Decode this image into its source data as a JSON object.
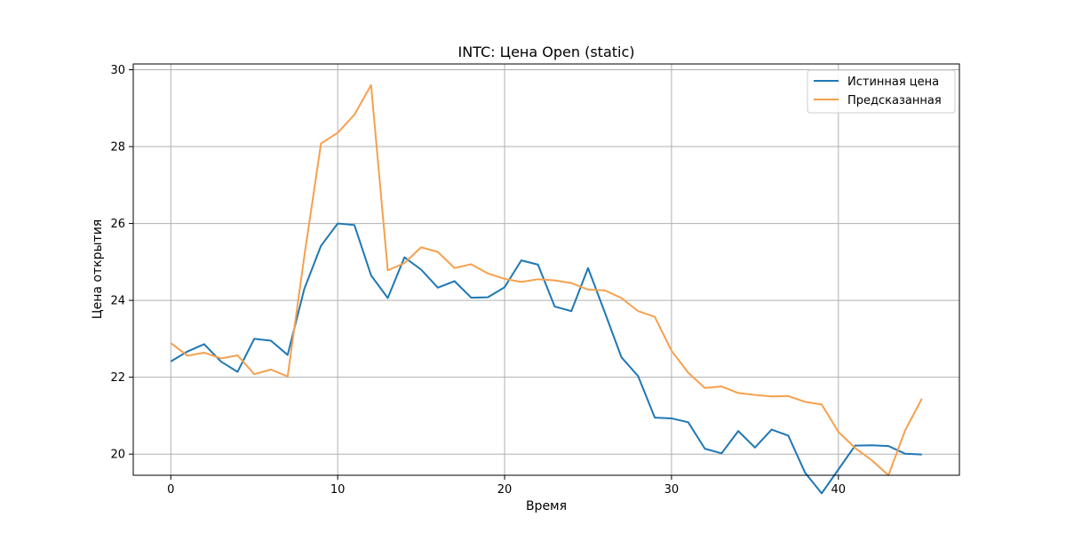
{
  "chart_data": {
    "type": "line",
    "title": "INTC: Цена Open (static)",
    "xlabel": "Время",
    "ylabel": "Цена открытия",
    "xlim": [
      -2.25,
      47.25
    ],
    "ylim": [
      19.45,
      30.15
    ],
    "xticks": [
      0,
      10,
      20,
      30,
      40
    ],
    "yticks": [
      20,
      22,
      24,
      26,
      28,
      30
    ],
    "grid": true,
    "legend_position": "top-right",
    "series": [
      {
        "name": "Истинная цена",
        "color": "#1f77b4",
        "x": [
          0,
          1,
          2,
          3,
          4,
          5,
          6,
          7,
          8,
          9,
          10,
          11,
          12,
          13,
          14,
          15,
          16,
          17,
          18,
          19,
          20,
          21,
          22,
          23,
          24,
          25,
          26,
          27,
          28,
          29,
          30,
          31,
          32,
          33,
          34,
          35,
          36,
          37,
          38,
          39,
          40,
          41,
          42,
          43,
          44,
          45
        ],
        "values": [
          22.41,
          22.67,
          22.86,
          22.41,
          22.14,
          23.0,
          22.95,
          22.58,
          24.3,
          25.42,
          26.0,
          25.96,
          24.65,
          24.06,
          25.12,
          24.8,
          24.33,
          24.5,
          24.07,
          24.08,
          24.34,
          25.04,
          24.93,
          23.84,
          23.72,
          24.84,
          23.69,
          22.52,
          22.03,
          20.95,
          20.93,
          20.83,
          20.14,
          20.02,
          20.6,
          20.17,
          20.64,
          20.48,
          19.52,
          18.98,
          19.6,
          20.22,
          20.23,
          20.21,
          20.01,
          19.99
        ]
      },
      {
        "name": "Предсказанная",
        "color": "#f5a04e",
        "x": [
          0,
          1,
          2,
          3,
          4,
          5,
          6,
          7,
          8,
          9,
          10,
          11,
          12,
          13,
          14,
          15,
          16,
          17,
          18,
          19,
          20,
          21,
          22,
          23,
          24,
          25,
          26,
          27,
          28,
          29,
          30,
          31,
          32,
          33,
          34,
          35,
          36,
          37,
          38,
          39,
          40,
          41,
          42,
          43,
          44,
          45
        ],
        "values": [
          22.89,
          22.56,
          22.64,
          22.49,
          22.57,
          22.08,
          22.2,
          22.02,
          25.15,
          28.08,
          28.36,
          28.83,
          29.6,
          24.78,
          24.97,
          25.38,
          25.26,
          24.84,
          24.94,
          24.7,
          24.56,
          24.48,
          24.55,
          24.52,
          24.45,
          24.28,
          24.26,
          24.06,
          23.72,
          23.57,
          22.69,
          22.12,
          21.72,
          21.76,
          21.59,
          21.54,
          21.5,
          21.51,
          21.36,
          21.29,
          20.58,
          20.16,
          19.84,
          19.45,
          20.62,
          21.44
        ]
      }
    ]
  }
}
